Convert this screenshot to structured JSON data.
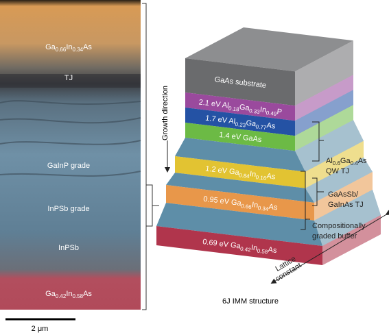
{
  "micrograph": {
    "labels": [
      [
        "Ga",
        "0.66",
        "In",
        "0.34",
        "As"
      ],
      [
        "TJ"
      ],
      [
        "GaInP grade"
      ],
      [
        "InPSb grade"
      ],
      [
        "InPSb"
      ],
      [
        "Ga",
        "0.42",
        "In",
        "0.58",
        "As"
      ]
    ],
    "scale_bar": "2 μm"
  },
  "structure": {
    "growth_direction": "Growth direction",
    "layers": [
      {
        "label": [
          "GaAs substrate"
        ]
      },
      {
        "label": [
          "2.1 eV Al",
          "0.18",
          "Ga",
          "0.33",
          "In",
          "0.49",
          "P"
        ]
      },
      {
        "label": [
          "1.7 eV Al",
          "0.23",
          "Ga",
          "0.77",
          "As"
        ]
      },
      {
        "label": [
          "1.4 eV GaAs"
        ]
      },
      {
        "label": [
          "1.2 eV Ga",
          "0.84",
          "In",
          "0.16",
          "As"
        ]
      },
      {
        "label": [
          "0.95 eV Ga",
          "0.66",
          "In",
          "0.34",
          "As"
        ]
      },
      {
        "label": [
          "0.69 eV Ga",
          "0.42",
          "In",
          "0.58",
          "As"
        ]
      }
    ],
    "annotations": [
      {
        "lines": [
          [
            "Al",
            "0.6",
            "Ga",
            "0.4",
            "As"
          ],
          [
            "QW TJ"
          ]
        ]
      },
      {
        "lines": [
          [
            "GaAsSb/"
          ],
          [
            "GaInAs TJ"
          ]
        ]
      },
      {
        "lines": [
          [
            "Compositionally"
          ],
          [
            "graded buffer"
          ]
        ]
      }
    ],
    "lattice_constant": {
      "lines": [
        [
          "Lattice"
        ],
        [
          "constant"
        ]
      ]
    },
    "caption": "6J IMM structure"
  }
}
